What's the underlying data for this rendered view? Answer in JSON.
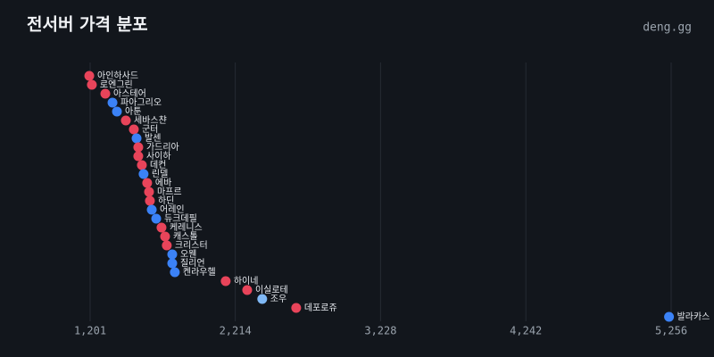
{
  "chart_data": {
    "type": "dot",
    "title": "전서버 가격 분포",
    "source": "deng.gg",
    "categories": [
      "아인하사드",
      "로엔그린",
      "아스테어",
      "파아그리오",
      "아툰",
      "세바스챤",
      "군터",
      "발센",
      "가드리아",
      "사이하",
      "데컨",
      "린델",
      "에바",
      "마프르",
      "하딘",
      "어레인",
      "듀크데필",
      "케레니스",
      "캐스톨",
      "크리스터",
      "오웬",
      "질리언",
      "켄라우헬",
      "하이네",
      "이실로테",
      "조우",
      "데포로쥬",
      "발라카스"
    ],
    "values": [
      1195,
      1213,
      1307,
      1357,
      1388,
      1450,
      1506,
      1525,
      1537,
      1537,
      1562,
      1574,
      1599,
      1612,
      1618,
      1631,
      1662,
      1699,
      1724,
      1736,
      1774,
      1774,
      1792,
      2147,
      2297,
      2402,
      2639,
      5241
    ],
    "colors": [
      "#e8445a",
      "#e8445a",
      "#e8445a",
      "#3b82f6",
      "#3b82f6",
      "#e8445a",
      "#e8445a",
      "#3b82f6",
      "#e8445a",
      "#e8445a",
      "#e8445a",
      "#3b82f6",
      "#e8445a",
      "#e8445a",
      "#e8445a",
      "#3b82f6",
      "#3b82f6",
      "#e8445a",
      "#e8445a",
      "#e8445a",
      "#3b82f6",
      "#3b82f6",
      "#3b82f6",
      "#e8445a",
      "#e8445a",
      "#7fb8f5",
      "#e8445a",
      "#3b82f6"
    ],
    "xlim": [
      1201,
      5256
    ],
    "xticks": [
      {
        "value": 1201,
        "label": "1,201"
      },
      {
        "value": 2214,
        "label": "2,214"
      },
      {
        "value": 3228,
        "label": "3,228"
      },
      {
        "value": 4242,
        "label": "4,242"
      },
      {
        "value": 5256,
        "label": "5,256"
      }
    ],
    "grid": true
  }
}
